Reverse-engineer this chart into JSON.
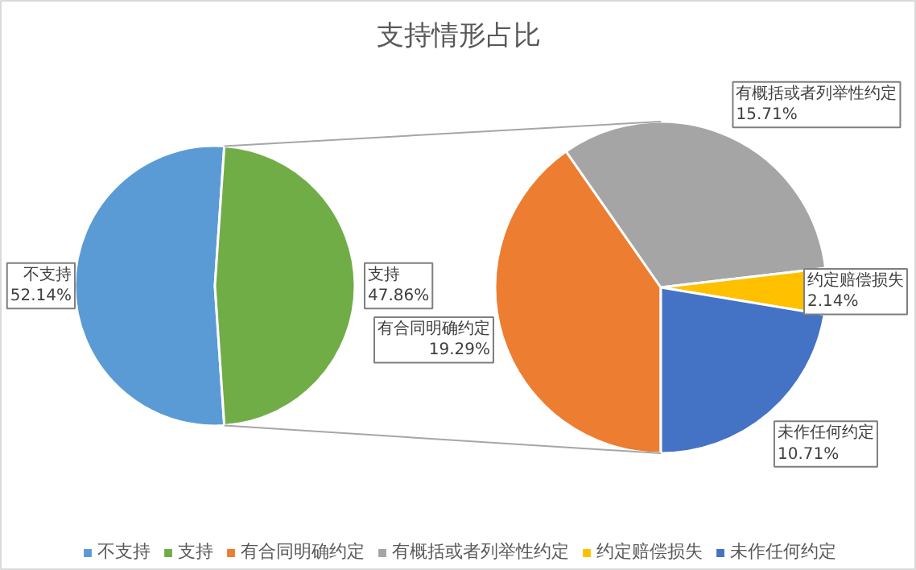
{
  "chart_data": [
    {
      "type": "pie",
      "title": "支持情形占比",
      "categories": [
        "不支持",
        "支持"
      ],
      "values": [
        52.14,
        47.86
      ],
      "value_labels": [
        "52.14%",
        "47.86%"
      ],
      "colors": [
        "#5b9bd5",
        "#70ad47"
      ],
      "legend": "bottom"
    },
    {
      "type": "pie",
      "categories": [
        "有合同明确约定",
        "有概括或者列举性约定",
        "约定赔偿损失",
        "未作任何约定"
      ],
      "values": [
        19.29,
        15.71,
        2.14,
        10.71
      ],
      "value_labels": [
        "19.29%",
        "15.71%",
        "2.14%",
        "10.71%"
      ],
      "colors": [
        "#ed7d31",
        "#a5a5a5",
        "#ffc000",
        "#4472c4"
      ],
      "legend": "bottom"
    }
  ]
}
